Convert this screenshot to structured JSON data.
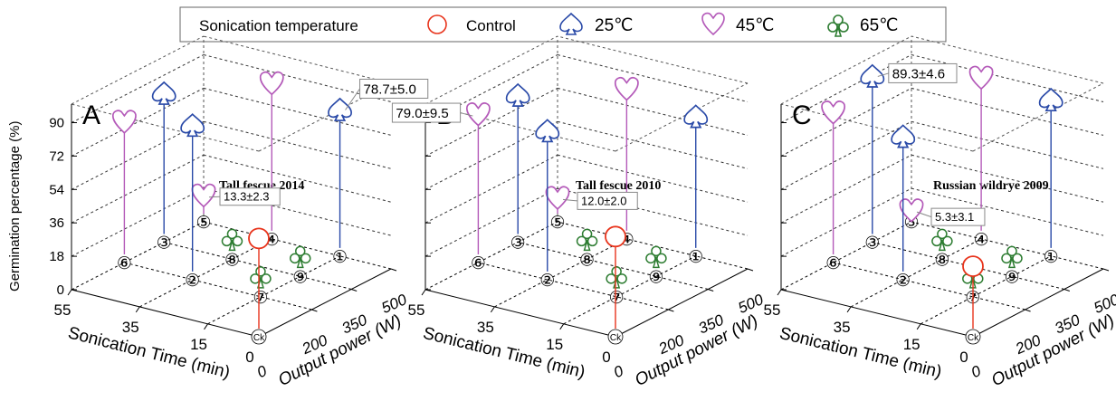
{
  "legend": {
    "title": "Sonication temperature",
    "items": [
      {
        "label": "Control",
        "color": "#e8341c",
        "marker": "circle"
      },
      {
        "label": "25℃",
        "color": "#2a4aa8",
        "marker": "spade"
      },
      {
        "label": "45℃",
        "color": "#b45ab9",
        "marker": "heart"
      },
      {
        "label": "65℃",
        "color": "#2e7d32",
        "marker": "club"
      }
    ]
  },
  "colors": {
    "axis": "#000000",
    "grid": "#000000",
    "box": "#666666"
  },
  "chart_data": [
    {
      "type": "scatter",
      "panel": "A",
      "title": "Tall fescue 2014",
      "zlabel": "Germination percentage (%)",
      "xlabel": "Sonication Time (min)",
      "ylabel": "Output power (W)",
      "ztick_labels": [
        "0",
        "18",
        "36",
        "54",
        "72",
        "90"
      ],
      "xtick_labels": [
        "0",
        "15",
        "35",
        "55"
      ],
      "ytick_labels": [
        "0",
        "200",
        "350",
        "500"
      ],
      "annotations": [
        "78.7±5.0",
        "13.3±2.3"
      ],
      "points": [
        {
          "id": "Ck",
          "series": "Control",
          "time": 0,
          "power": 0,
          "germination": 53
        },
        {
          "id": "1",
          "series": "25℃",
          "time": 15,
          "power": 500,
          "germination": 78.7
        },
        {
          "id": "2",
          "series": "25℃",
          "time": 35,
          "power": 200,
          "germination": 83
        },
        {
          "id": "3",
          "series": "25℃",
          "time": 55,
          "power": 350,
          "germination": 80
        },
        {
          "id": "4",
          "series": "45℃",
          "time": 35,
          "power": 500,
          "germination": 83
        },
        {
          "id": "5",
          "series": "45℃",
          "time": 55,
          "power": 500,
          "germination": 13.3
        },
        {
          "id": "6",
          "series": "45℃",
          "time": 55,
          "power": 200,
          "germination": 75
        },
        {
          "id": "7",
          "series": "65℃",
          "time": 15,
          "power": 200,
          "germination": 0
        },
        {
          "id": "8",
          "series": "65℃",
          "time": 35,
          "power": 350,
          "germination": 0
        },
        {
          "id": "9",
          "series": "65℃",
          "time": 15,
          "power": 350,
          "germination": 0
        }
      ]
    },
    {
      "type": "scatter",
      "panel": "B",
      "title": "Tall fescue 2010",
      "zlabel": "",
      "xlabel": "Sonication Time (min)",
      "ylabel": "Output power (W)",
      "ztick_labels": [],
      "xtick_labels": [
        "0",
        "15",
        "35",
        "55"
      ],
      "ytick_labels": [
        "0",
        "200",
        "350",
        "500"
      ],
      "annotations": [
        "79.0±9.5",
        "12.0±2.0"
      ],
      "points": [
        {
          "id": "Ck",
          "series": "Control",
          "time": 0,
          "power": 0,
          "germination": 54
        },
        {
          "id": "1",
          "series": "25℃",
          "time": 15,
          "power": 500,
          "germination": 75
        },
        {
          "id": "2",
          "series": "25℃",
          "time": 35,
          "power": 200,
          "germination": 80
        },
        {
          "id": "3",
          "series": "25℃",
          "time": 55,
          "power": 350,
          "germination": 79
        },
        {
          "id": "4",
          "series": "45℃",
          "time": 35,
          "power": 500,
          "germination": 80
        },
        {
          "id": "5",
          "series": "45℃",
          "time": 55,
          "power": 500,
          "germination": 12.0
        },
        {
          "id": "6",
          "series": "45℃",
          "time": 55,
          "power": 200,
          "germination": 79.0
        },
        {
          "id": "7",
          "series": "65℃",
          "time": 15,
          "power": 200,
          "germination": 0
        },
        {
          "id": "8",
          "series": "65℃",
          "time": 35,
          "power": 350,
          "germination": 0
        },
        {
          "id": "9",
          "series": "65℃",
          "time": 15,
          "power": 350,
          "germination": 0
        }
      ]
    },
    {
      "type": "scatter",
      "panel": "C",
      "title": "Russian wildrye 2009",
      "zlabel": "",
      "xlabel": "Sonication Time (min)",
      "ylabel": "Output power (W)",
      "ztick_labels": [],
      "xtick_labels": [
        "0",
        "15",
        "35",
        "55"
      ],
      "ytick_labels": [
        "0",
        "200",
        "350",
        "500"
      ],
      "annotations": [
        "89.3±4.6",
        "5.3±3.1"
      ],
      "points": [
        {
          "id": "Ck",
          "series": "Control",
          "time": 0,
          "power": 0,
          "germination": 38
        },
        {
          "id": "1",
          "series": "25℃",
          "time": 15,
          "power": 500,
          "germination": 84
        },
        {
          "id": "2",
          "series": "25℃",
          "time": 35,
          "power": 200,
          "germination": 77
        },
        {
          "id": "3",
          "series": "25℃",
          "time": 55,
          "power": 350,
          "germination": 89.3
        },
        {
          "id": "4",
          "series": "45℃",
          "time": 35,
          "power": 500,
          "germination": 86
        },
        {
          "id": "5",
          "series": "45℃",
          "time": 55,
          "power": 500,
          "germination": 5.3
        },
        {
          "id": "6",
          "series": "45℃",
          "time": 55,
          "power": 200,
          "germination": 80
        },
        {
          "id": "7",
          "series": "65℃",
          "time": 15,
          "power": 200,
          "germination": 0
        },
        {
          "id": "8",
          "series": "65℃",
          "time": 35,
          "power": 350,
          "germination": 0
        },
        {
          "id": "9",
          "series": "65℃",
          "time": 15,
          "power": 350,
          "germination": 0
        }
      ]
    }
  ]
}
